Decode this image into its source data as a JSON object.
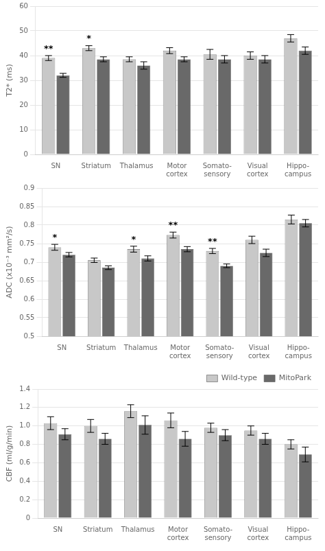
{
  "chart_data": [
    {
      "type": "bar",
      "categories": [
        "SN",
        "Striatum",
        "Thalamus",
        "Motor\ncortex",
        "Somato-\nsensory",
        "Visual\ncortex",
        "Hippo-\ncampus"
      ],
      "series": [
        {
          "name": "Wild-type",
          "color": "#c8c8c8",
          "values": [
            39.0,
            43.0,
            38.5,
            42.0,
            40.5,
            40.0,
            47.0
          ],
          "errors": [
            1.0,
            1.0,
            1.0,
            1.2,
            2.0,
            1.5,
            1.5
          ],
          "annotations": [
            "**",
            "*",
            null,
            null,
            null,
            null,
            null
          ]
        },
        {
          "name": "MitoPark",
          "color": "#696969",
          "values": [
            32.0,
            38.5,
            36.0,
            38.5,
            38.5,
            38.5,
            42.0
          ],
          "errors": [
            0.8,
            1.0,
            1.5,
            1.0,
            1.5,
            1.5,
            1.5
          ]
        }
      ],
      "ylabel": "T2* (ms)",
      "ylim": [
        0,
        60
      ],
      "yticks": [
        0,
        10,
        20,
        30,
        40,
        50,
        60
      ],
      "grid": true
    },
    {
      "type": "bar",
      "categories": [
        "SN",
        "Striatum",
        "Thalamus",
        "Motor\ncortex",
        "Somato-\nsensory",
        "Visual\ncortex",
        "Hippo-\ncampus"
      ],
      "series": [
        {
          "name": "Wild-type",
          "color": "#c8c8c8",
          "values": [
            0.74,
            0.705,
            0.735,
            0.773,
            0.73,
            0.76,
            0.815
          ],
          "errors": [
            0.008,
            0.006,
            0.008,
            0.008,
            0.007,
            0.01,
            0.012
          ],
          "annotations": [
            "*",
            null,
            "*",
            "**",
            "**",
            null,
            null
          ]
        },
        {
          "name": "MitoPark",
          "color": "#696969",
          "values": [
            0.72,
            0.685,
            0.71,
            0.735,
            0.69,
            0.725,
            0.805
          ],
          "errors": [
            0.006,
            0.005,
            0.007,
            0.007,
            0.005,
            0.01,
            0.01
          ]
        }
      ],
      "ylabel": "ADC (x10⁻³ mm²/s)",
      "ylim": [
        0.5,
        0.9
      ],
      "yticks": [
        0.5,
        0.55,
        0.6,
        0.65,
        0.7,
        0.75,
        0.8,
        0.85,
        0.9
      ],
      "grid": true
    },
    {
      "type": "bar",
      "categories": [
        "SN",
        "Striatum",
        "Thalamus",
        "Motor\ncortex",
        "Somato-\nsensory",
        "Visual\ncortex",
        "Hippo-\ncampus"
      ],
      "series": [
        {
          "name": "Wild-type",
          "color": "#c8c8c8",
          "values": [
            1.03,
            1.0,
            1.16,
            1.06,
            0.98,
            0.95,
            0.8
          ],
          "errors": [
            0.07,
            0.07,
            0.07,
            0.08,
            0.05,
            0.05,
            0.05
          ]
        },
        {
          "name": "MitoPark",
          "color": "#696969",
          "values": [
            0.91,
            0.86,
            1.01,
            0.86,
            0.9,
            0.86,
            0.69
          ],
          "errors": [
            0.06,
            0.06,
            0.1,
            0.08,
            0.06,
            0.06,
            0.08
          ]
        }
      ],
      "ylabel": "CBF (ml/g/min)",
      "ylim": [
        0,
        1.4
      ],
      "yticks": [
        0,
        0.2,
        0.4,
        0.6,
        0.8,
        {
          "value": 1.0,
          "label": "1.0"
        },
        1.2,
        1.4
      ],
      "grid": true,
      "legend": "upper right"
    }
  ]
}
